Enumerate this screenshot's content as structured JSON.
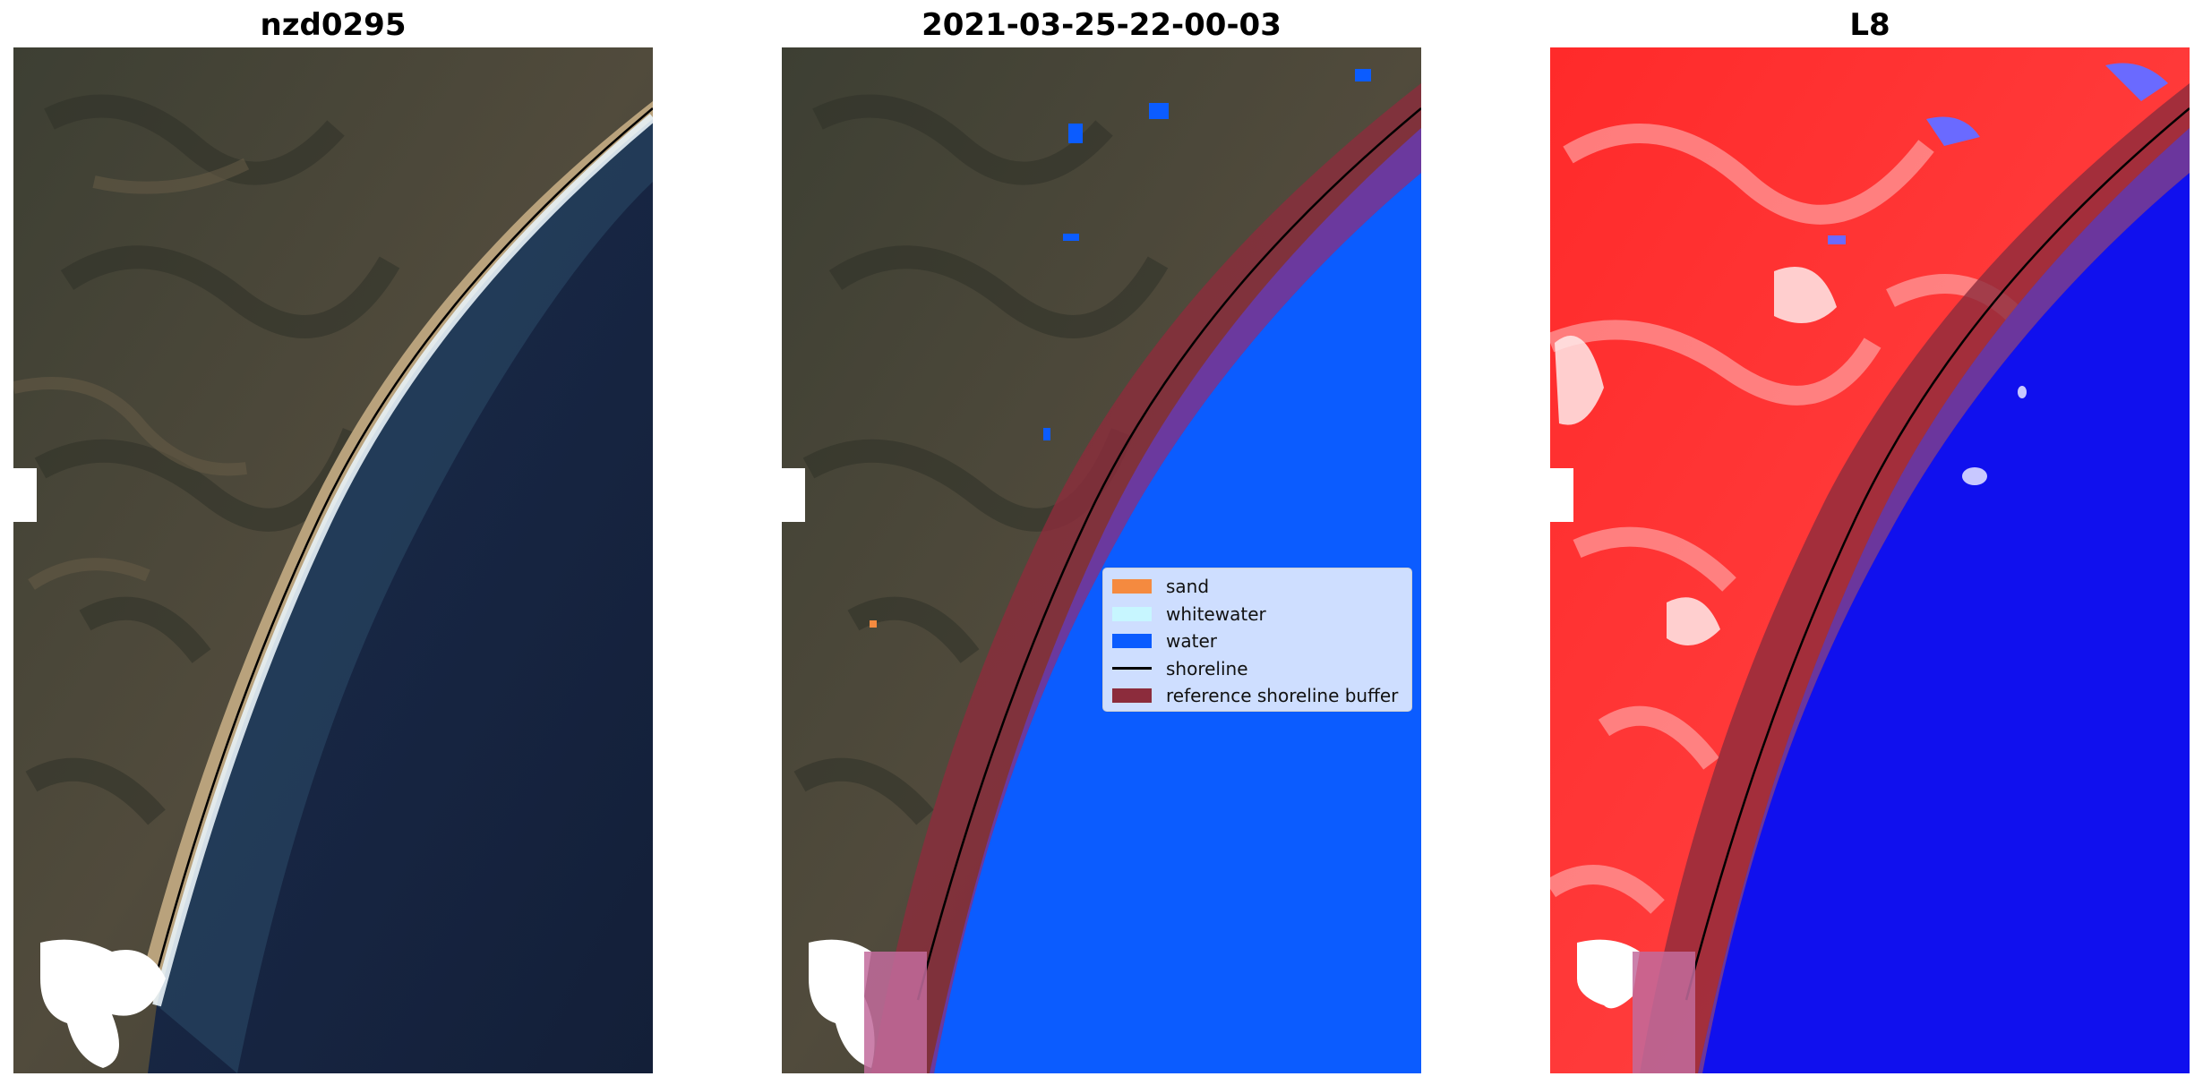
{
  "panels": [
    {
      "title": "nzd0295"
    },
    {
      "title": "2021-03-25-22-00-03"
    },
    {
      "title": "L8"
    }
  ],
  "legend": {
    "items": [
      {
        "label": "sand",
        "color": "#f58a3f",
        "kind": "patch"
      },
      {
        "label": "whitewater",
        "color": "#c7f6ff",
        "kind": "patch"
      },
      {
        "label": "water",
        "color": "#0b5cff",
        "kind": "patch"
      },
      {
        "label": "shoreline",
        "color": "#000000",
        "kind": "line"
      },
      {
        "label": "reference shoreline buffer",
        "color": "#8c2c3c",
        "kind": "patch"
      }
    ]
  },
  "colors": {
    "land": "#4a4a3c",
    "ocean": "#16233f",
    "water_class": "#0b5cff",
    "buffer": "#8c2c3c",
    "mndwi_land": "#ff2a2a",
    "mndwi_water": "#1010ee"
  }
}
